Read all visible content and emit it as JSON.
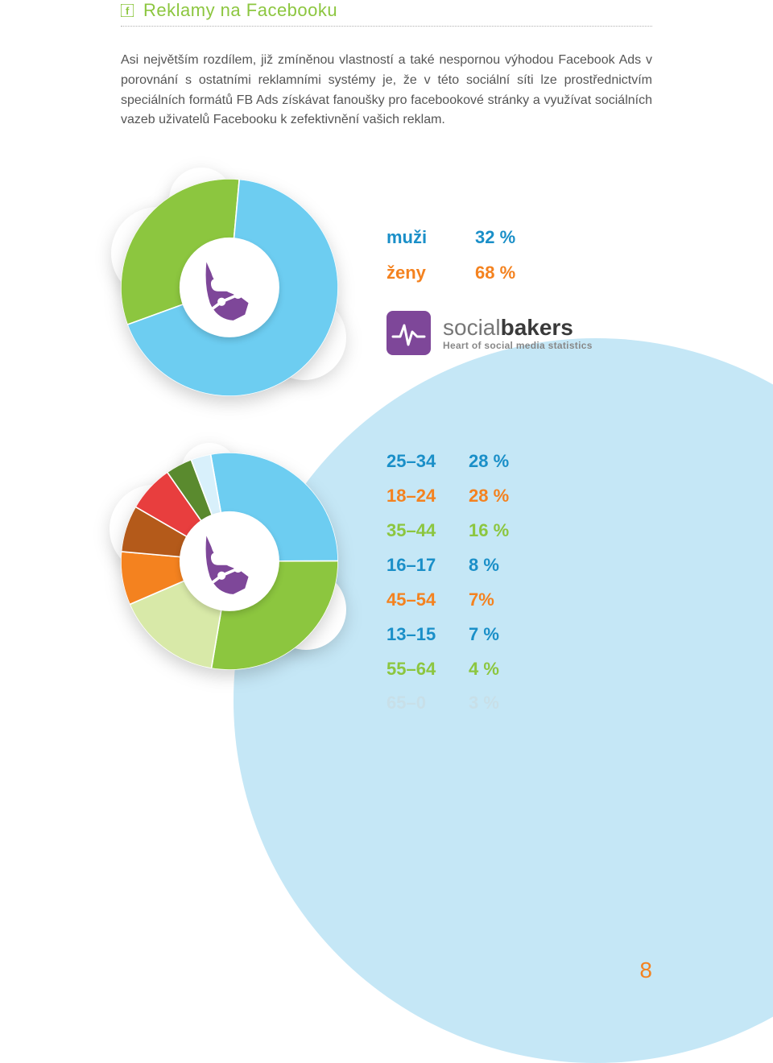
{
  "colors": {
    "accent_green": "#8cc63f",
    "accent_orange": "#f4821f",
    "light_blue_bg": "#c5e7f6",
    "grey_text": "#777777",
    "page_num": "#f4821f",
    "brand_purple": "#7e4799"
  },
  "header": {
    "title": "Reklamy na Facebooku",
    "title_color": "#8cc63f",
    "icon_name": "facebook-small-icon"
  },
  "body_paragraph": "Asi největším rozdílem, již zmíněnou vlastností a také nespornou výhodou Facebook Ads v porovnání s ostatními reklamními systémy je, že v této sociální síti lze prostřednictvím speciálních formátů FB Ads získávat fanoušky pro facebookové stránky a využívat sociálních vazeb uživatelů Facebooku k zefektivnění vašich reklam.",
  "chart_gender": {
    "type": "donut",
    "hole_ratio": 0.46,
    "slices": [
      {
        "label": "muži",
        "value": 32,
        "color": "#8cc63f"
      },
      {
        "label": "ženy",
        "value": 68,
        "color": "#6dcdf1"
      }
    ],
    "legend": [
      {
        "label": "muži",
        "value": "32 %",
        "color": "#1a8fc8"
      },
      {
        "label": "ženy",
        "value": "68 %",
        "color": "#f4821f"
      }
    ]
  },
  "brand": {
    "name_light": "social",
    "name_bold": "bakers",
    "tagline": "Heart of social media statistics",
    "logo_bg": "#7e4799"
  },
  "chart_age": {
    "type": "donut",
    "hole_ratio": 0.46,
    "slices": [
      {
        "label": "25–34",
        "value": 28,
        "color": "#6dcdf1"
      },
      {
        "label": "18–24",
        "value": 28,
        "color": "#8cc63f"
      },
      {
        "label": "35–44",
        "value": 16,
        "color": "#d8e9a8"
      },
      {
        "label": "16–17",
        "value": 8,
        "color": "#f4821f"
      },
      {
        "label": "45–54",
        "value": 7,
        "color": "#b45a1a"
      },
      {
        "label": "13–15",
        "value": 7,
        "color": "#e83e3e"
      },
      {
        "label": "55–64",
        "value": 4,
        "color": "#5a8a2e"
      },
      {
        "label": "65–0",
        "value": 3,
        "color": "#d8f0fb"
      }
    ],
    "legend": [
      {
        "label": "25–34",
        "value": "28 %",
        "color": "#1a8fc8"
      },
      {
        "label": "18–24",
        "value": "28 %",
        "color": "#f4821f"
      },
      {
        "label": "35–44",
        "value": "16 %",
        "color": "#8cc63f"
      },
      {
        "label": "16–17",
        "value": "8 %",
        "color": "#1a8fc8"
      },
      {
        "label": "45–54",
        "value": "7%",
        "color": "#f4821f"
      },
      {
        "label": "13–15",
        "value": "7 %",
        "color": "#1a8fc8"
      },
      {
        "label": "55–64",
        "value": "4 %",
        "color": "#8cc63f"
      },
      {
        "label": "65–0",
        "value": "3 %",
        "color": "#c8dfe8"
      }
    ]
  },
  "page_number": "8"
}
